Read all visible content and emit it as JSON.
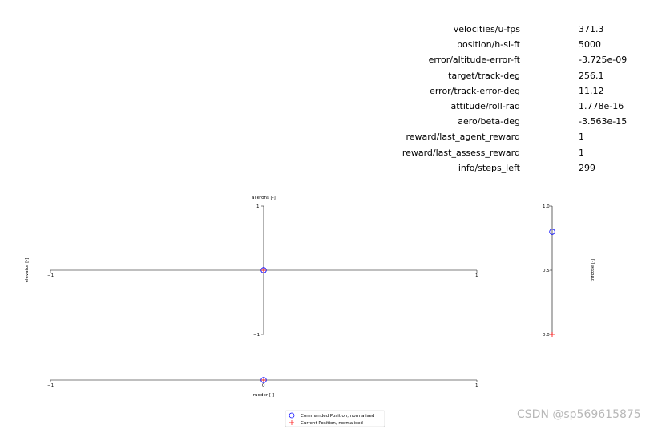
{
  "readout": [
    {
      "label": "velocities/u-fps",
      "value": "371.3"
    },
    {
      "label": "position/h-sl-ft",
      "value": "5000"
    },
    {
      "label": "error/altitude-error-ft",
      "value": "-3.725e-09"
    },
    {
      "label": "target/track-deg",
      "value": "256.1"
    },
    {
      "label": "error/track-error-deg",
      "value": "11.12"
    },
    {
      "label": "attitude/roll-rad",
      "value": "1.778e-16"
    },
    {
      "label": "aero/beta-deg",
      "value": "-3.563e-15"
    },
    {
      "label": "reward/last_agent_reward",
      "value": "1"
    },
    {
      "label": "reward/last_assess_reward",
      "value": "1"
    },
    {
      "label": "info/steps_left",
      "value": "299"
    }
  ],
  "chart_data": [
    {
      "type": "scatter",
      "id": "stick",
      "xlabel": "ailerons [-]",
      "ylabel": "elevator [-]",
      "xlim": [
        -1,
        1
      ],
      "ylim": [
        -1,
        1
      ],
      "x_ticks": [
        "−1",
        "1"
      ],
      "y_ticks": [
        "1",
        "−1"
      ],
      "grid": false,
      "series": [
        {
          "name": "Commanded Position, normalised",
          "marker": "circle",
          "color": "#0000ff",
          "points": [
            {
              "x": 0,
              "y": 0
            }
          ]
        },
        {
          "name": "Current Position, normalised",
          "marker": "plus",
          "color": "#ff0000",
          "points": [
            {
              "x": 0,
              "y": 0
            }
          ]
        }
      ]
    },
    {
      "type": "scatter",
      "id": "rudder",
      "xlabel": "rudder [-]",
      "xlim": [
        -1,
        1
      ],
      "x_ticks": [
        "−1",
        "0",
        "1"
      ],
      "grid": false,
      "series": [
        {
          "name": "Commanded Position, normalised",
          "marker": "circle",
          "color": "#0000ff",
          "points": [
            {
              "x": 0
            }
          ]
        },
        {
          "name": "Current Position, normalised",
          "marker": "plus",
          "color": "#ff0000",
          "points": [
            {
              "x": 0
            }
          ]
        }
      ]
    },
    {
      "type": "scatter",
      "id": "throttle",
      "ylabel": "throttle [-]",
      "ylim": [
        0,
        1
      ],
      "y_ticks": [
        "1.0",
        "0.5",
        "0.0"
      ],
      "grid": false,
      "series": [
        {
          "name": "Commanded Position, normalised",
          "marker": "circle",
          "color": "#0000ff",
          "points": [
            {
              "y": 0.8
            }
          ]
        },
        {
          "name": "Current Position, normalised",
          "marker": "plus",
          "color": "#ff0000",
          "points": [
            {
              "y": 0.0
            }
          ]
        }
      ]
    }
  ],
  "legend": {
    "placement": "bottom-center",
    "entries": [
      {
        "label": "Commanded Position, normalised",
        "marker": "circle",
        "color": "#0000ff"
      },
      {
        "label": "Current Position, normalised",
        "marker": "plus",
        "color": "#ff0000"
      }
    ]
  },
  "watermark": "CSDN @sp569615875"
}
